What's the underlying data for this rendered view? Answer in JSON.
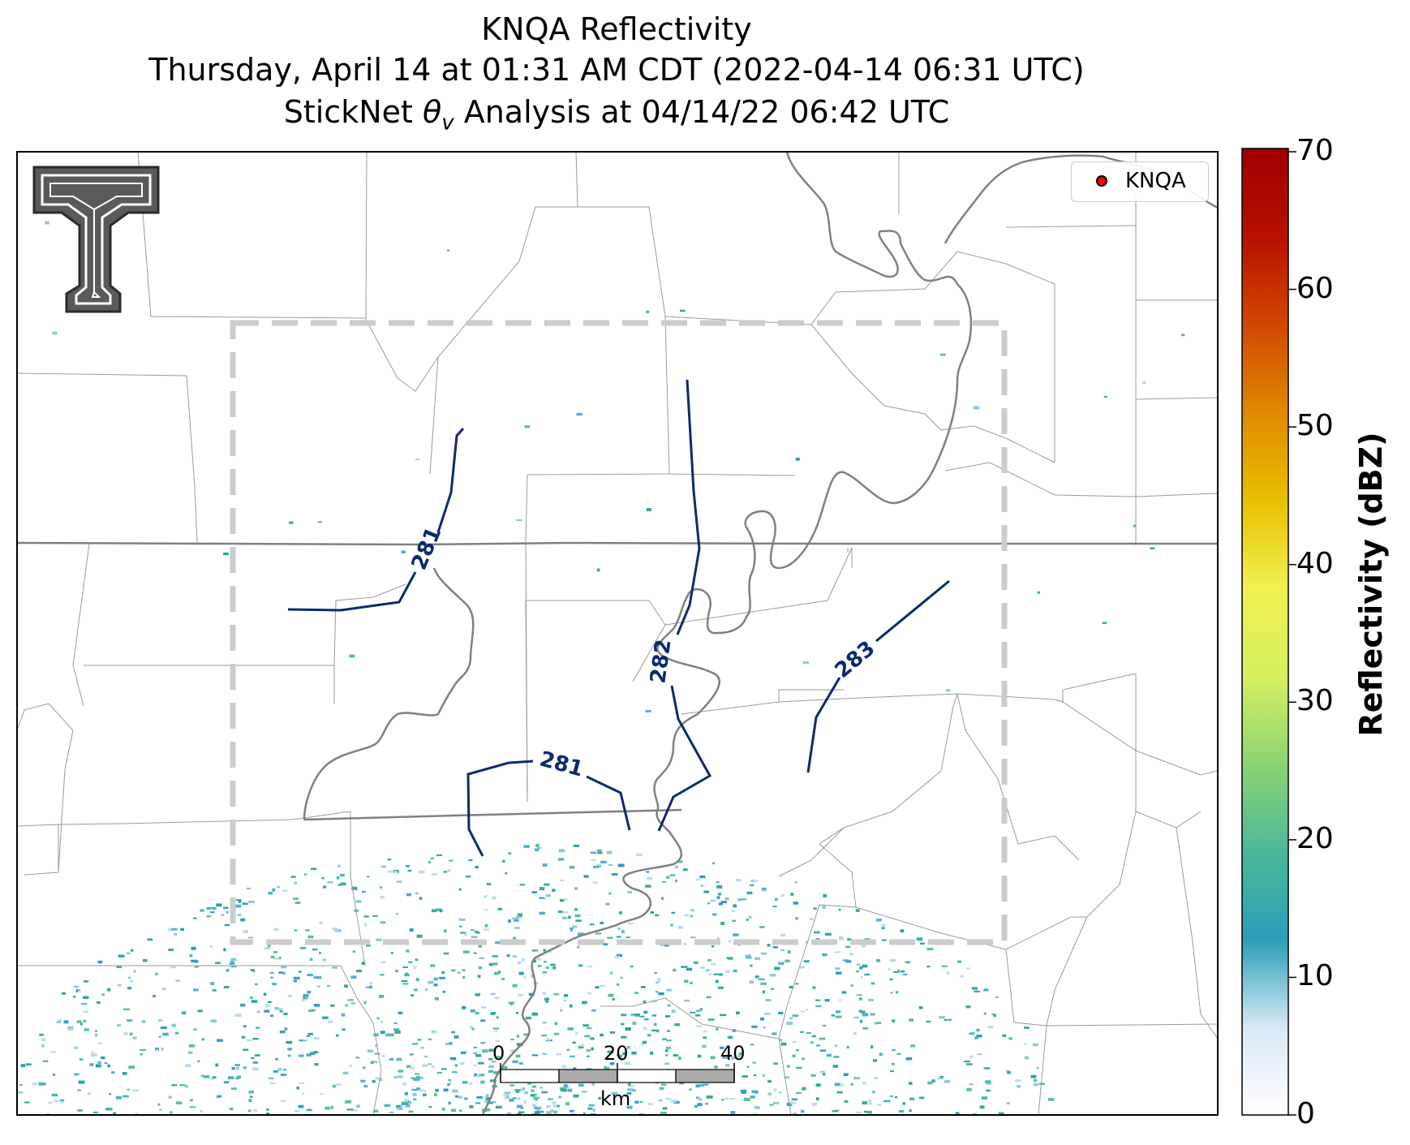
{
  "title": {
    "line1": "KNQA Reflectivity",
    "line2": "Thursday, April 14 at 01:31 AM CDT (2022-04-14 06:31 UTC)",
    "line3_prefix": "StickNet ",
    "line3_symbol": "θ",
    "line3_subscript": "v",
    "line3_suffix": " Analysis at 04/14/22 06:42 UTC"
  },
  "legend": {
    "marker_color": "#ff0000",
    "label": "KNQA"
  },
  "colorbar": {
    "label": "Reflectivity (dBZ)",
    "min": 0,
    "max": 70,
    "ticks": [
      "0",
      "10",
      "20",
      "30",
      "40",
      "50",
      "60",
      "70"
    ],
    "colors": [
      "#ffffff",
      "#d8e8f5",
      "#2a9fb8",
      "#4cb89a",
      "#8cd474",
      "#d6f060",
      "#f0f050",
      "#e8c000",
      "#e08800",
      "#d04800",
      "#b81000",
      "#a00000"
    ]
  },
  "contours": {
    "color": "#0b2a6f",
    "labels": [
      "281",
      "282",
      "283",
      "281"
    ]
  },
  "analysis_box": {
    "color": "#cccccc",
    "style": "dashed"
  },
  "scalebar": {
    "labels": [
      "0",
      "20",
      "40"
    ],
    "unit": "km"
  },
  "logo": {
    "name": "Texas Tech double-T"
  }
}
